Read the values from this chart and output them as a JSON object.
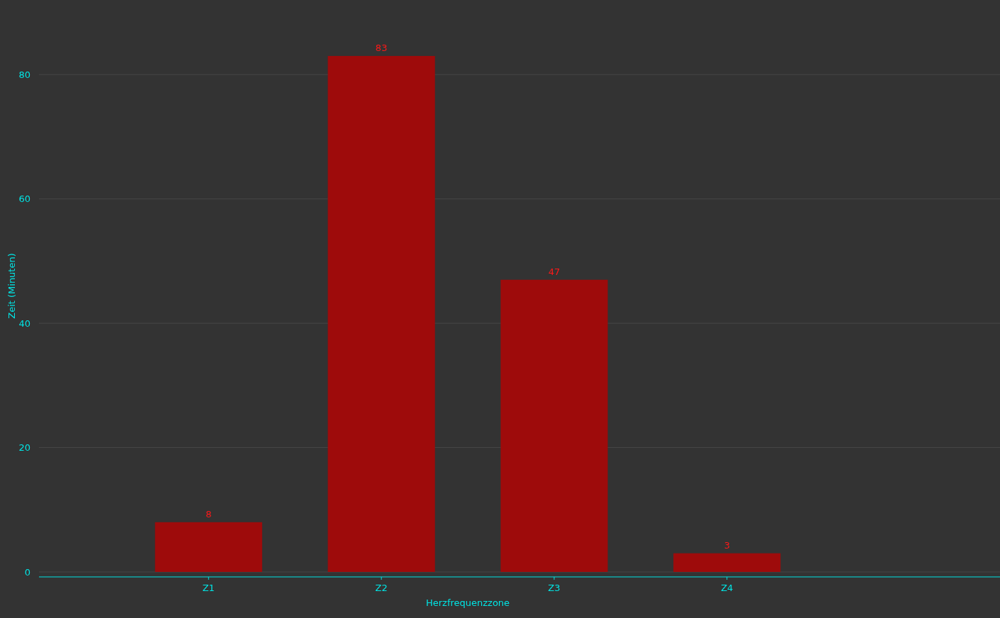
{
  "chart_data": {
    "type": "bar",
    "xlabel": "Herzfrequenzzone",
    "ylabel": "Zeit (Minuten)",
    "categories": [
      "Z1",
      "Z2",
      "Z3",
      "Z4"
    ],
    "values": [
      8,
      83,
      47,
      3
    ],
    "color": "#9e0b0b",
    "ylim": [
      0,
      92
    ],
    "yticks": [
      0,
      20,
      40,
      60,
      80
    ],
    "grid": "y",
    "data_labels": true
  }
}
